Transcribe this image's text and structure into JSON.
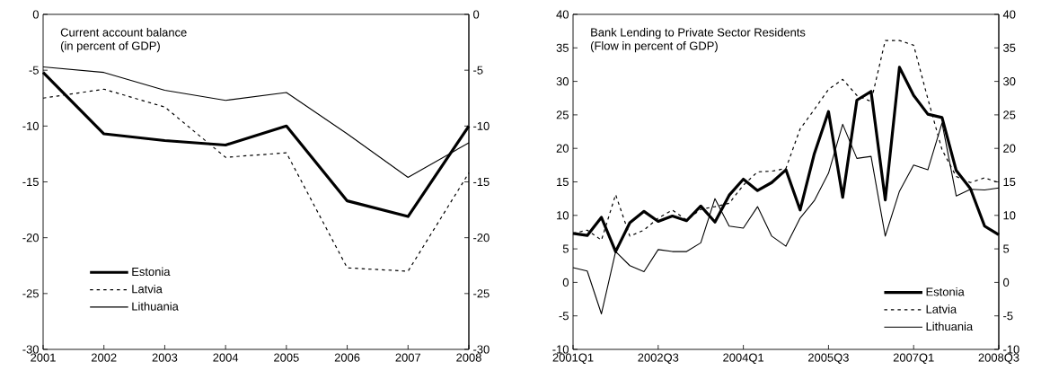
{
  "chart_data": [
    {
      "type": "line",
      "title": "Current account balance",
      "subtitle": "(in percent of GDP)",
      "categories": [
        "2001",
        "2002",
        "2003",
        "2004",
        "2005",
        "2006",
        "2007",
        "2008"
      ],
      "series": [
        {
          "name": "Estonia",
          "color": "#000000",
          "line_style": "solid",
          "values": [
            -5.2,
            -10.7,
            -11.3,
            -11.7,
            -10.0,
            -16.7,
            -18.1,
            -10.0
          ]
        },
        {
          "name": "Latvia",
          "color": "#000000",
          "line_style": "dashed",
          "values": [
            -7.5,
            -6.7,
            -8.3,
            -12.8,
            -12.4,
            -22.7,
            -23.0,
            -14.2
          ]
        },
        {
          "name": "Lithuania",
          "color": "#000000",
          "line_style": "solid",
          "values": [
            -4.7,
            -5.2,
            -6.8,
            -7.7,
            -7.0,
            -10.7,
            -14.6,
            -11.5
          ]
        }
      ],
      "ylim": [
        -30,
        0
      ],
      "yticks": [
        -30,
        -25,
        -20,
        -15,
        -10,
        -5,
        0
      ],
      "y2lim": [
        -30,
        0
      ],
      "y2ticks": [
        -30,
        -25,
        -20,
        -15,
        -10,
        -5,
        0
      ],
      "legend": "bottom left"
    },
    {
      "type": "line",
      "title": "Bank Lending to Private Sector Residents",
      "subtitle": "(Flow in percent of GDP)",
      "categories": [
        "2001Q1",
        null,
        null,
        null,
        null,
        null,
        "2002Q3",
        null,
        null,
        null,
        null,
        null,
        "2004Q1",
        null,
        null,
        null,
        null,
        null,
        "2005Q3",
        null,
        null,
        null,
        null,
        null,
        "2007Q1",
        null,
        null,
        null,
        null,
        null,
        "2008Q3"
      ],
      "series": [
        {
          "name": "Estonia",
          "color": "#000000",
          "line_style": "solid",
          "values": [
            7.3,
            7.0,
            9.7,
            4.6,
            8.9,
            10.6,
            9.1,
            9.9,
            9.2,
            11.4,
            9.0,
            13.0,
            15.4,
            13.7,
            14.9,
            16.8,
            10.8,
            19.2,
            25.5,
            12.7,
            27.2,
            28.5,
            12.3,
            32.1,
            27.9,
            25.1,
            24.6,
            16.7,
            14.0,
            8.4,
            7.1
          ]
        },
        {
          "name": "Latvia",
          "color": "#000000",
          "line_style": "dashed",
          "values": [
            7.3,
            7.8,
            6.3,
            13.1,
            6.9,
            7.8,
            9.6,
            10.8,
            9.3,
            10.9,
            11.3,
            11.8,
            14.5,
            16.5,
            16.6,
            17.0,
            22.9,
            25.8,
            28.8,
            30.3,
            27.9,
            27.0,
            36.1,
            36.1,
            35.4,
            27.4,
            19.8,
            15.8,
            14.9,
            15.6,
            14.9
          ]
        },
        {
          "name": "Lithuania",
          "color": "#000000",
          "line_style": "solid",
          "values": [
            2.2,
            1.7,
            -4.7,
            4.6,
            2.5,
            1.6,
            4.9,
            4.6,
            4.6,
            5.9,
            12.5,
            8.4,
            8.1,
            11.3,
            6.9,
            5.4,
            9.6,
            12.2,
            16.3,
            23.6,
            18.5,
            18.8,
            6.9,
            13.6,
            17.5,
            16.8,
            23.8,
            12.9,
            13.9,
            13.8,
            14.1
          ]
        }
      ],
      "ylim": [
        -10,
        40
      ],
      "yticks": [
        -10,
        -5,
        0,
        5,
        10,
        15,
        20,
        25,
        30,
        35,
        40
      ],
      "y2lim": [
        -10,
        40
      ],
      "y2ticks": [
        -10,
        -5,
        0,
        5,
        10,
        15,
        20,
        25,
        30,
        35,
        40
      ],
      "legend": "bottom right"
    }
  ]
}
